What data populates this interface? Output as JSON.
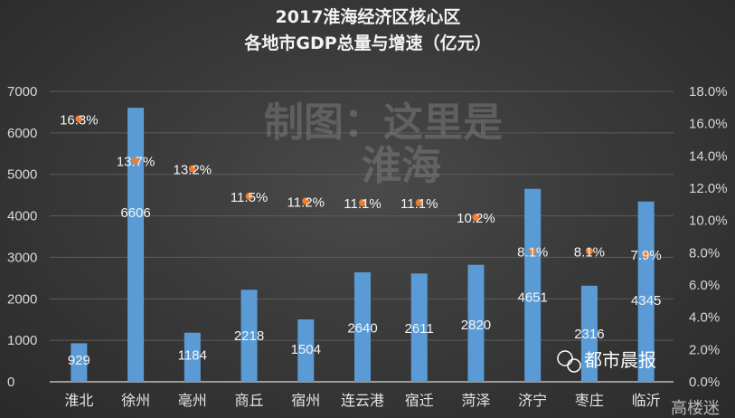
{
  "chart_data": {
    "type": "bar+line",
    "title_lines": [
      "2017淮海经济区核心区",
      "各地市GDP总量与增速（亿元）"
    ],
    "categories": [
      "淮北",
      "徐州",
      "亳州",
      "商丘",
      "宿州",
      "连云港",
      "宿迁",
      "菏泽",
      "济宁",
      "枣庄",
      "临沂"
    ],
    "series": [
      {
        "type": "bar",
        "axis": "left",
        "color": "#5b9bd5",
        "values": [
          929,
          6606,
          1184,
          2218,
          1504,
          2640,
          2611,
          2820,
          4651,
          2316,
          4345
        ],
        "labels": [
          "929",
          "6606",
          "1184",
          "2218",
          "1504",
          "2640",
          "2611",
          "2820",
          "4651",
          "2316",
          "4345"
        ]
      },
      {
        "type": "scatter",
        "axis": "right",
        "color": "#ed7d31",
        "values": [
          16.3,
          13.7,
          13.2,
          11.5,
          11.2,
          11.1,
          11.1,
          10.2,
          8.1,
          8.1,
          7.9
        ],
        "labels": [
          "16.3%",
          "13.7%",
          "13.2%",
          "11.5%",
          "11.2%",
          "11.1%",
          "11.1%",
          "10.2%",
          "8.1%",
          "8.1%",
          "7.9%"
        ]
      }
    ],
    "left_axis": {
      "ylim": [
        0,
        7000
      ],
      "ticks": [
        "0",
        "1000",
        "2000",
        "3000",
        "4000",
        "5000",
        "6000",
        "7000"
      ]
    },
    "right_axis": {
      "ylim": [
        0,
        18
      ],
      "ticks": [
        "0.0%",
        "2.0%",
        "4.0%",
        "6.0%",
        "8.0%",
        "10.0%",
        "12.0%",
        "14.0%",
        "16.0%",
        "18.0%"
      ]
    },
    "grid": true,
    "legend": "none"
  },
  "watermark": {
    "text1": "制图：这里是",
    "text2": "淮海"
  },
  "logo": {
    "text": "都市晨报",
    "sub": "高楼迷"
  }
}
